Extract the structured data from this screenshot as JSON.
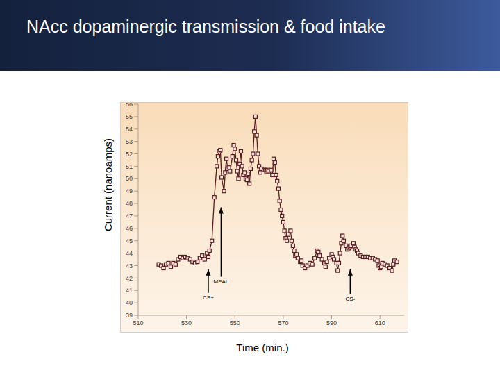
{
  "chart_data": {
    "type": "line",
    "title": "NAcc dopaminergic transmission & food intake",
    "x_label": "Time (min.)",
    "y_label": "Current (nanoamps)",
    "color": "#5a1c1c",
    "marker": "square",
    "xlim": [
      510,
      620
    ],
    "xticks": [
      510,
      530,
      550,
      570,
      590,
      610
    ],
    "ylim": [
      39,
      56
    ],
    "yticks": [
      39,
      40,
      41,
      42,
      43,
      44,
      45,
      46,
      47,
      48,
      49,
      50,
      51,
      52,
      53,
      54,
      55,
      56
    ],
    "x": [
      518.5,
      519.5,
      520.5,
      521.5,
      522.5,
      523.5,
      524.5,
      525.5,
      526.5,
      527.5,
      528.5,
      529.5,
      530.5,
      531.5,
      532.5,
      533.5,
      534.5,
      535.5,
      536.5,
      537.5,
      538.5,
      539,
      539.5,
      540.5,
      541.5,
      542.5,
      543,
      543.5,
      544,
      544.5,
      545.5,
      546,
      546.5,
      547,
      547.5,
      548,
      549,
      549.5,
      550,
      550.5,
      551,
      551.5,
      552,
      552.5,
      553,
      553.5,
      554,
      554.5,
      555,
      555.5,
      556,
      556.5,
      557,
      557.5,
      558,
      558.5,
      559,
      559.5,
      560,
      560.5,
      561,
      562,
      562.5,
      563,
      563.5,
      564,
      565,
      565.5,
      566,
      566.5,
      567,
      567.5,
      568,
      568.5,
      569,
      569.5,
      570,
      570.5,
      571,
      571.5,
      572,
      573,
      573.5,
      574,
      574.5,
      575,
      575.5,
      576,
      577,
      577.5,
      578,
      579,
      580,
      581,
      582,
      583,
      584,
      584.5,
      585,
      586,
      587,
      587.5,
      588,
      589,
      590,
      590.5,
      591,
      592,
      592.5,
      593,
      593.5,
      594,
      594.5,
      595,
      596,
      596.5,
      597,
      597.5,
      598,
      599,
      599.5,
      600,
      600.5,
      601,
      602,
      603,
      604,
      605,
      606,
      607,
      608,
      609,
      609.5,
      610,
      610.5,
      611,
      612,
      613,
      614,
      615,
      615.5,
      616,
      617
    ],
    "values": [
      43.1,
      43.0,
      42.8,
      43.1,
      43.2,
      42.9,
      43.2,
      43.1,
      43.5,
      43.7,
      43.6,
      43.7,
      43.6,
      43.5,
      43.3,
      43.2,
      43.3,
      43.6,
      43.8,
      43.5,
      44.0,
      43.7,
      44.2,
      45.0,
      48.5,
      51.0,
      51.8,
      52.2,
      52.3,
      50.1,
      49.0,
      50.5,
      51.6,
      50.8,
      50.9,
      50.6,
      51.8,
      52.7,
      52.4,
      51.5,
      50.6,
      50.0,
      51.2,
      52.2,
      51.0,
      50.3,
      50.5,
      50.0,
      49.9,
      50.4,
      49.6,
      50.8,
      51.5,
      52.0,
      53.8,
      55.0,
      53.5,
      52.0,
      51.0,
      50.5,
      50.8,
      50.7,
      50.7,
      50.6,
      50.7,
      50.6,
      50.7,
      50.3,
      51.6,
      51.3,
      50.3,
      49.8,
      49.2,
      48.2,
      47.5,
      47.0,
      46.5,
      45.8,
      45.2,
      45.0,
      45.5,
      45.8,
      45.0,
      44.6,
      44.2,
      43.8,
      43.9,
      43.6,
      43.3,
      43.4,
      43.0,
      42.8,
      43.0,
      43.2,
      43.1,
      43.6,
      44.2,
      44.1,
      43.8,
      43.5,
      43.2,
      42.9,
      43.3,
      43.6,
      43.9,
      43.7,
      43.5,
      43.2,
      42.6,
      43.2,
      44.0,
      44.8,
      45.4,
      45.0,
      44.6,
      44.3,
      44.4,
      44.5,
      44.6,
      44.8,
      44.5,
      44.3,
      44.2,
      44.0,
      43.8,
      43.7,
      43.7,
      43.7,
      43.6,
      43.6,
      43.5,
      43.4,
      43.0,
      42.8,
      42.9,
      43.2,
      43.1,
      43.0,
      42.8,
      42.6,
      43.1,
      43.4,
      43.3
    ],
    "annotations": [
      {
        "text": "CS+",
        "x": 539,
        "y": 42.7,
        "y_from": 40.8
      },
      {
        "text": "MEAL",
        "x": 544.3,
        "y": 47.7,
        "y_from": 42.1
      },
      {
        "text": "CS-",
        "x": 597.7,
        "y": 42.7,
        "y_from": 40.7
      }
    ]
  }
}
